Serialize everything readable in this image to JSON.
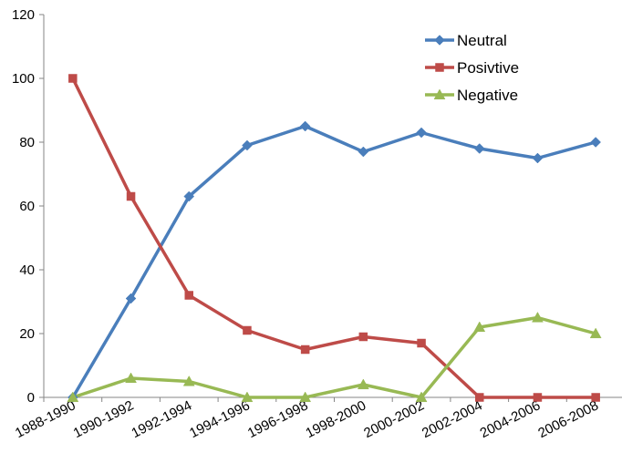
{
  "chart_data": {
    "type": "line",
    "title": "",
    "xlabel": "",
    "ylabel": "",
    "categories": [
      "1988-1990",
      "1990-1992",
      "1992-1994",
      "1994-1996",
      "1996-1998",
      "1998-2000",
      "2000-2002",
      "2002-2004",
      "2004-2006",
      "2006-2008"
    ],
    "ylim": [
      0,
      120
    ],
    "yticks": [
      "0",
      "20",
      "40",
      "60",
      "80",
      "100",
      "120"
    ],
    "grid": false,
    "legend_position": "top-right",
    "series": [
      {
        "name": "Neutral",
        "color": "#4A7EBB",
        "marker": "diamond",
        "values": [
          0,
          31,
          63,
          79,
          85,
          77,
          83,
          78,
          75,
          80
        ]
      },
      {
        "name": "Posivtive",
        "color": "#BE4B48",
        "marker": "square",
        "values": [
          100,
          63,
          32,
          21,
          15,
          19,
          17,
          0,
          0,
          0
        ]
      },
      {
        "name": "Negative",
        "color": "#98B954",
        "marker": "triangle",
        "values": [
          0,
          6,
          5,
          0,
          0,
          4,
          0,
          22,
          25,
          20
        ]
      }
    ]
  }
}
